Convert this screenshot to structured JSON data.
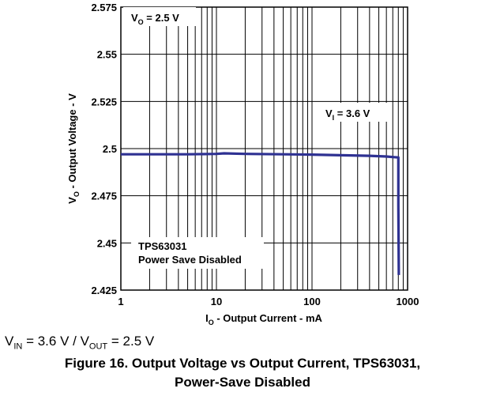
{
  "chart_data": {
    "type": "line",
    "xscale": "log",
    "xlim": [
      1,
      1000
    ],
    "ylim": [
      2.425,
      2.575
    ],
    "x_ticks": [
      "1",
      "10",
      "100",
      "1000"
    ],
    "y_ticks": [
      "2.575",
      "2.55",
      "2.525",
      "2.5",
      "2.475",
      "2.45",
      "2.425"
    ],
    "xlabel": {
      "main": "I",
      "sub": "O",
      "rest": " - Output Current - mA"
    },
    "ylabel": {
      "main": "V",
      "sub": "O",
      "rest": " - Output Voltage - V"
    },
    "grid": true,
    "line_color": "#2e3192",
    "series": [
      {
        "name": "",
        "x": [
          1,
          2,
          5,
          10,
          12,
          20,
          50,
          100,
          200,
          400,
          600,
          700,
          800,
          800,
          810
        ],
        "y": [
          2.497,
          2.497,
          2.497,
          2.4972,
          2.4975,
          2.4972,
          2.497,
          2.4968,
          2.4965,
          2.4962,
          2.4958,
          2.4955,
          2.4953,
          2.47,
          2.433
        ]
      }
    ],
    "annotations": [
      {
        "id": "vo",
        "main": "V",
        "sub": "O",
        "rest": " = 2.5 V"
      },
      {
        "id": "vi",
        "main": "V",
        "sub": "I",
        "rest": " = 3.6 V"
      },
      {
        "id": "device",
        "lines": [
          "TPS63031",
          "Power Save Disabled"
        ]
      }
    ]
  },
  "conditions": {
    "vin_main": "V",
    "vin_sub": "IN",
    "vin_rest": " = 3.6 V / V",
    "vout_sub": "OUT",
    "vout_rest": " = 2.5 V"
  },
  "caption": {
    "line1": "Figure 16. Output Voltage vs Output Current, TPS63031,",
    "line2": "Power-Save Disabled"
  }
}
